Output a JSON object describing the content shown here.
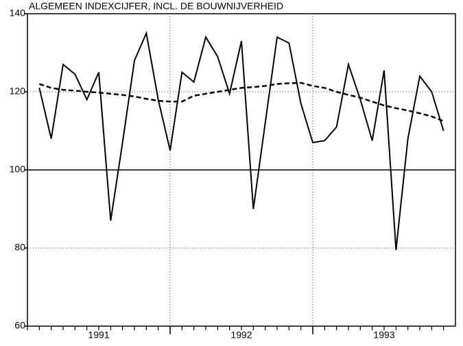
{
  "chart_data": {
    "type": "line",
    "title": "ALGEMEEN INDEXCIJFER, INCL. DE BOUWNIJVERHEID",
    "categories": [
      null,
      null,
      null,
      null,
      null,
      null,
      null,
      null,
      null,
      null,
      null,
      null,
      null,
      null,
      null,
      null,
      null,
      null,
      null,
      null,
      null,
      null,
      null,
      null,
      null,
      null,
      null,
      null,
      null,
      null,
      null,
      null,
      null,
      null,
      null,
      null
    ],
    "series": [
      {
        "color": "#000000",
        "dashed": false,
        "values": [
          null,
          121,
          108,
          127,
          124.5,
          118,
          125,
          87,
          107,
          128,
          135,
          118,
          105,
          125,
          122.5,
          134,
          129,
          119.5,
          133,
          90,
          112,
          134,
          132.5,
          117,
          107,
          107.5,
          111,
          127,
          118,
          107.5,
          125.5,
          79.5,
          108,
          124,
          120,
          110
        ]
      },
      {
        "color": "#000000",
        "dashed": true,
        "values": [
          null,
          122,
          121,
          120.5,
          120.3,
          120,
          119.8,
          119.5,
          119.2,
          118.8,
          118.2,
          117.7,
          117.5,
          117.5,
          119,
          119.5,
          120,
          120.5,
          121,
          121.2,
          121.5,
          122,
          122.2,
          122.3,
          121.5,
          121,
          120,
          119.2,
          118.5,
          117.5,
          116.5,
          115.8,
          115.2,
          114.5,
          113.7,
          112.5
        ]
      }
    ],
    "xticks": [
      {
        "value": 6,
        "label": "1991"
      },
      {
        "value": 18,
        "label": "1992"
      },
      {
        "value": 30,
        "label": "1993"
      }
    ],
    "xgrid": [
      12,
      24
    ],
    "ylim": [
      60,
      140
    ],
    "yticks": [
      60,
      80,
      100,
      120,
      140
    ],
    "reference_line": 100,
    "grid": true
  }
}
